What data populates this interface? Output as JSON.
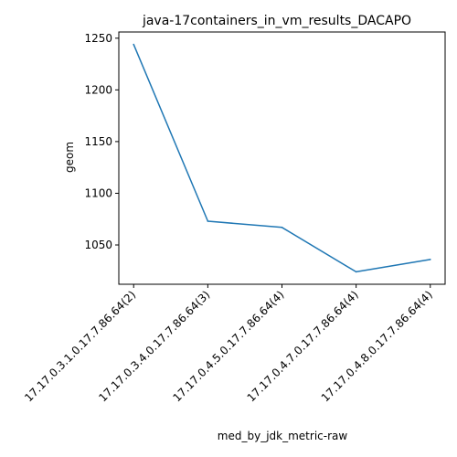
{
  "chart_data": {
    "type": "line",
    "title": "java-17containers_in_vm_results_DACAPO",
    "xlabel": "med_by_jdk_metric-raw",
    "ylabel": "geom",
    "categories": [
      "17.17.0.3.1.0.17.7.86.64(2)",
      "17.17.0.3.4.0.17.7.86.64(3)",
      "17.17.0.4.5.0.17.7.86.64(4)",
      "17.17.0.4.7.0.17.7.86.64(4)",
      "17.17.0.4.8.0.17.7.86.64(4)"
    ],
    "series": [
      {
        "values": [
          1244,
          1073,
          1067,
          1024,
          1036
        ]
      }
    ],
    "ylim": [
      1012,
      1256
    ],
    "yticks": [
      1050,
      1100,
      1150,
      1200,
      1250
    ],
    "grid": false,
    "line_color": "#1f77b4"
  }
}
